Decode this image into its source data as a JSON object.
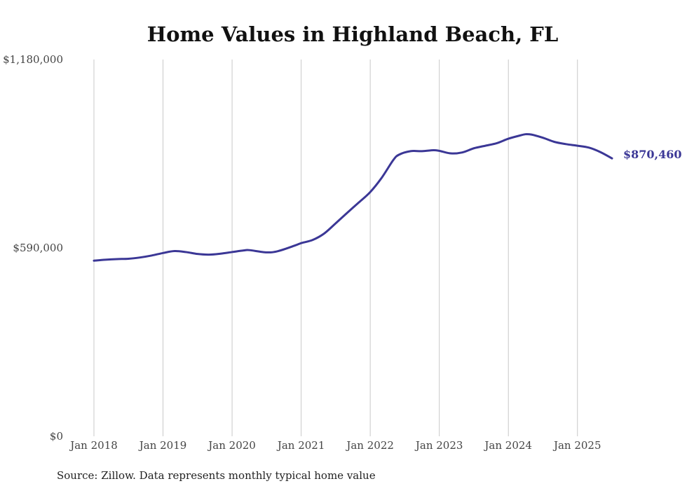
{
  "chart_data": {
    "type": "line",
    "title": "Home Values in Highland Beach, FL",
    "xlabel": "",
    "ylabel": "",
    "ylim": [
      0,
      1180000
    ],
    "y_ticks": [
      {
        "value": 0,
        "label": "$0"
      },
      {
        "value": 590000,
        "label": "$590,000"
      },
      {
        "value": 1180000,
        "label": "$1,180,000"
      }
    ],
    "x_ticks": [
      {
        "value": 2018,
        "label": "Jan 2018"
      },
      {
        "value": 2019,
        "label": "Jan 2019"
      },
      {
        "value": 2020,
        "label": "Jan 2020"
      },
      {
        "value": 2021,
        "label": "Jan 2021"
      },
      {
        "value": 2022,
        "label": "Jan 2022"
      },
      {
        "value": 2023,
        "label": "Jan 2023"
      },
      {
        "value": 2024,
        "label": "Jan 2024"
      },
      {
        "value": 2025,
        "label": "Jan 2025"
      }
    ],
    "xlim": [
      2018,
      2025.5
    ],
    "grid": "vertical",
    "series": [
      {
        "name": "Home Value",
        "color": "#3b3796",
        "end_label": "$870,460",
        "x": [
          2018.0,
          2018.167,
          2018.333,
          2018.5,
          2018.667,
          2018.833,
          2019.0,
          2019.167,
          2019.333,
          2019.5,
          2019.667,
          2019.833,
          2020.0,
          2020.167,
          2020.25,
          2020.5,
          2020.667,
          2020.917,
          2021.0,
          2021.167,
          2021.333,
          2021.5,
          2021.667,
          2021.833,
          2022.0,
          2022.167,
          2022.333,
          2022.417,
          2022.583,
          2022.75,
          2022.917,
          2023.0,
          2023.167,
          2023.333,
          2023.5,
          2023.667,
          2023.833,
          2024.0,
          2024.167,
          2024.25,
          2024.333,
          2024.5,
          2024.667,
          2024.833,
          2025.0,
          2025.167,
          2025.333,
          2025.5
        ],
        "values": [
          550000,
          553000,
          555000,
          556000,
          560000,
          566000,
          574000,
          580000,
          577000,
          571000,
          569000,
          572000,
          577000,
          582000,
          583000,
          576000,
          580000,
          598000,
          605000,
          615000,
          635000,
          667000,
          700000,
          732000,
          765000,
          810000,
          865000,
          882000,
          893000,
          893000,
          896000,
          894000,
          886000,
          889000,
          902000,
          910000,
          918000,
          932000,
          942000,
          946000,
          945000,
          935000,
          922000,
          915000,
          910000,
          904000,
          890000,
          870460
        ]
      }
    ]
  },
  "footer": {
    "source": "Source: Zillow. Data represents monthly typical home value"
  }
}
